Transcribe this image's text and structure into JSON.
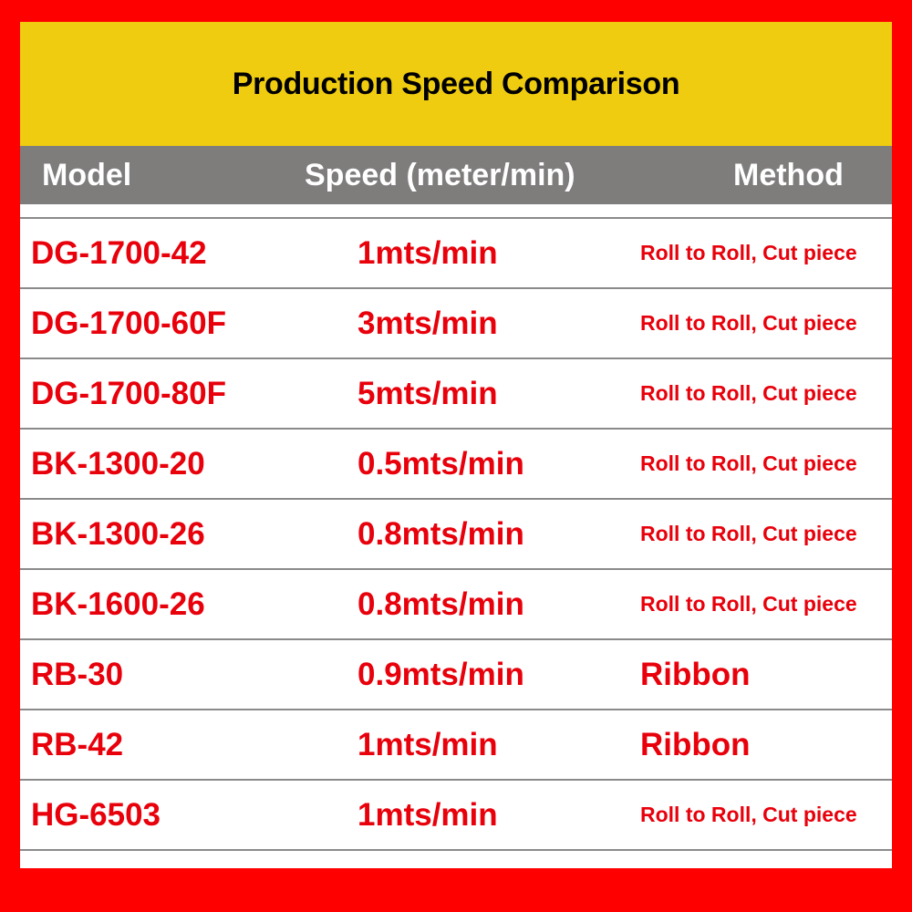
{
  "title": "Production Speed Comparison",
  "headers": {
    "model": "Model",
    "speed": "Speed (meter/min)",
    "method": "Method"
  },
  "rows": [
    {
      "model": "DG-1700-42",
      "speed": "1mts/min",
      "method": "Roll to Roll, Cut piece"
    },
    {
      "model": "DG-1700-60F",
      "speed": "3mts/min",
      "method": "Roll to Roll, Cut piece"
    },
    {
      "model": "DG-1700-80F",
      "speed": "5mts/min",
      "method": "Roll to Roll, Cut piece"
    },
    {
      "model": "BK-1300-20",
      "speed": "0.5mts/min",
      "method": "Roll to Roll, Cut piece"
    },
    {
      "model": "BK-1300-26",
      "speed": "0.8mts/min",
      "method": "Roll to Roll, Cut piece"
    },
    {
      "model": "BK-1600-26",
      "speed": "0.8mts/min",
      "method": "Roll to Roll, Cut piece"
    },
    {
      "model": "RB-30",
      "speed": "0.9mts/min",
      "method": "Ribbon"
    },
    {
      "model": "RB-42",
      "speed": "1mts/min",
      "method": "Ribbon"
    },
    {
      "model": "HG-6503",
      "speed": "1mts/min",
      "method": "Roll to Roll, Cut piece"
    }
  ],
  "colors": {
    "border": "#ff0000",
    "title_bg": "#efcc10",
    "header_bg": "#7f7c7c",
    "cell_text": "#e8000b"
  }
}
